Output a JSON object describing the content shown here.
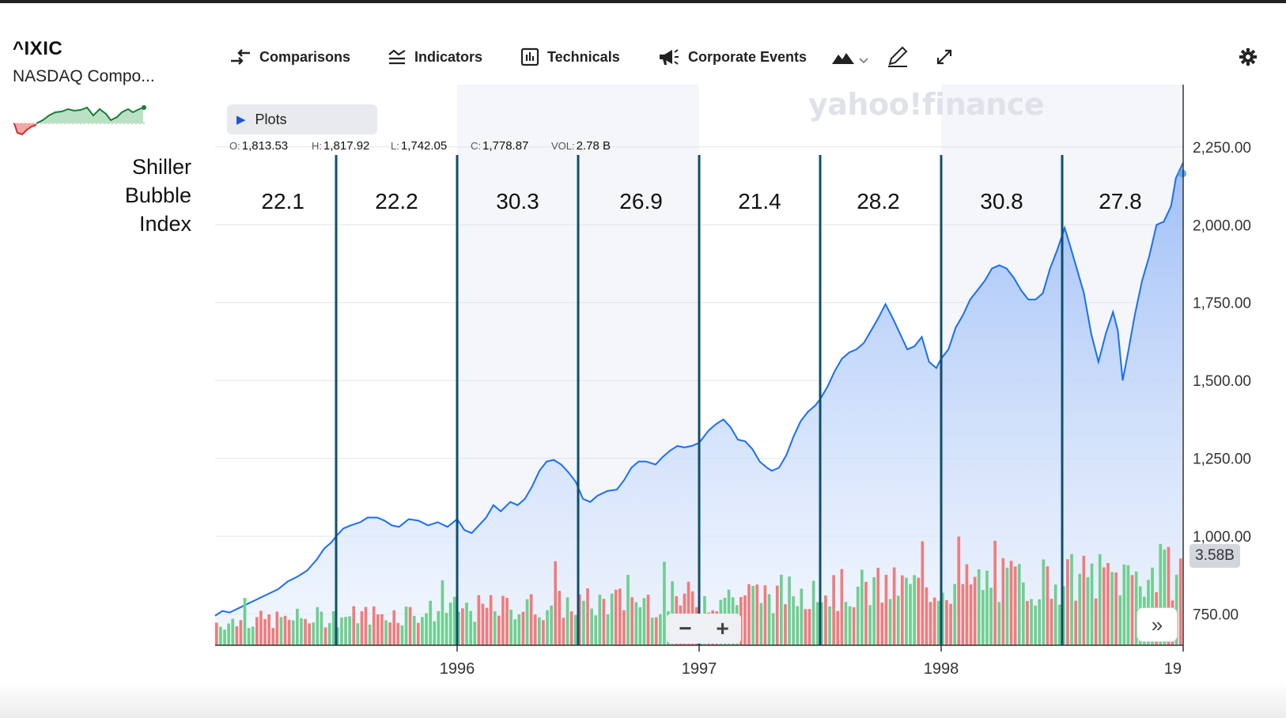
{
  "header": {
    "ticker": "^IXIC",
    "company": "NASDAQ Compo..."
  },
  "annotation": {
    "lines": [
      "Shiller",
      "Bubble",
      "Index"
    ]
  },
  "toolbar": {
    "comparisons": "Comparisons",
    "indicators": "Indicators",
    "technicals": "Technicals",
    "corporate_events": "Corporate Events",
    "icons": [
      "comparisons-icon",
      "indicators-icon",
      "technicals-icon",
      "megaphone-icon",
      "mountain-chart-icon",
      "chevron-down-icon",
      "pencil-icon",
      "expand-icon",
      "gear-icon"
    ]
  },
  "plots": {
    "label": "Plots"
  },
  "ohlc": {
    "o_label": "O:",
    "o": "1,813.53",
    "h_label": "H:",
    "h": "1,817.92",
    "l_label": "L:",
    "l": "1,742.05",
    "c_label": "C:",
    "c": "1,778.87",
    "vol_label": "VOL:",
    "vol": "2.78 B"
  },
  "watermark": "yahoo!finance",
  "volume_badge": "3.58B",
  "zoom": {
    "minus": "−",
    "plus": "+"
  },
  "forward": "»",
  "colors": {
    "line": "#1a6ff0",
    "area_top": "#9bbcf7",
    "area_bottom": "#eaf2fe",
    "vol_up": "#6fcf8f",
    "vol_down": "#f07c7c",
    "divider": "#0f4f6e",
    "shade": "#f4f6fa"
  },
  "chart_data": {
    "type": "area",
    "title": "",
    "xlabel": "",
    "ylabel": "",
    "y_ticks": [
      "750.00",
      "1,000.00",
      "1,250.00",
      "1,500.00",
      "1,750.00",
      "2,000.00",
      "2,250.00"
    ],
    "x_ticks": [
      {
        "label": "1996",
        "year": 1996.0
      },
      {
        "label": "1997",
        "year": 1997.0
      },
      {
        "label": "1998",
        "year": 1998.0
      },
      {
        "label": "19",
        "year": 1999.0
      }
    ],
    "xlim": [
      1995.0,
      1999.0
    ],
    "ylim": [
      650,
      2450
    ],
    "shaded_years": [
      [
        1996.0,
        1997.0
      ],
      [
        1998.0,
        1999.0
      ]
    ],
    "dividers": [
      1995.5,
      1996.0,
      1996.5,
      1997.0,
      1997.5,
      1998.0,
      1998.5
    ],
    "bubble_index": [
      {
        "label": "22.1",
        "center": 1995.28
      },
      {
        "label": "22.2",
        "center": 1995.75
      },
      {
        "label": "30.3",
        "center": 1996.25
      },
      {
        "label": "26.9",
        "center": 1996.76
      },
      {
        "label": "21.4",
        "center": 1997.25
      },
      {
        "label": "28.2",
        "center": 1997.74
      },
      {
        "label": "30.8",
        "center": 1998.25
      },
      {
        "label": "27.8",
        "center": 1998.74
      }
    ],
    "series": [
      {
        "points": [
          [
            1995.0,
            745
          ],
          [
            1995.03,
            760
          ],
          [
            1995.06,
            755
          ],
          [
            1995.1,
            770
          ],
          [
            1995.14,
            785
          ],
          [
            1995.18,
            800
          ],
          [
            1995.22,
            815
          ],
          [
            1995.26,
            830
          ],
          [
            1995.3,
            855
          ],
          [
            1995.34,
            870
          ],
          [
            1995.38,
            890
          ],
          [
            1995.42,
            925
          ],
          [
            1995.45,
            960
          ],
          [
            1995.48,
            980
          ],
          [
            1995.5,
            1000
          ],
          [
            1995.53,
            1025
          ],
          [
            1995.56,
            1035
          ],
          [
            1995.6,
            1045
          ],
          [
            1995.63,
            1060
          ],
          [
            1995.67,
            1060
          ],
          [
            1995.7,
            1050
          ],
          [
            1995.73,
            1035
          ],
          [
            1995.76,
            1030
          ],
          [
            1995.8,
            1055
          ],
          [
            1995.84,
            1050
          ],
          [
            1995.88,
            1035
          ],
          [
            1995.92,
            1045
          ],
          [
            1995.96,
            1030
          ],
          [
            1996.0,
            1055
          ],
          [
            1996.03,
            1020
          ],
          [
            1996.06,
            1010
          ],
          [
            1996.09,
            1035
          ],
          [
            1996.12,
            1060
          ],
          [
            1996.15,
            1100
          ],
          [
            1996.18,
            1080
          ],
          [
            1996.22,
            1110
          ],
          [
            1996.25,
            1100
          ],
          [
            1996.28,
            1120
          ],
          [
            1996.31,
            1160
          ],
          [
            1996.34,
            1210
          ],
          [
            1996.37,
            1240
          ],
          [
            1996.4,
            1245
          ],
          [
            1996.43,
            1230
          ],
          [
            1996.46,
            1205
          ],
          [
            1996.49,
            1175
          ],
          [
            1996.52,
            1120
          ],
          [
            1996.55,
            1110
          ],
          [
            1996.58,
            1130
          ],
          [
            1996.62,
            1145
          ],
          [
            1996.66,
            1150
          ],
          [
            1996.69,
            1180
          ],
          [
            1996.72,
            1220
          ],
          [
            1996.75,
            1240
          ],
          [
            1996.78,
            1240
          ],
          [
            1996.82,
            1230
          ],
          [
            1996.85,
            1255
          ],
          [
            1996.88,
            1275
          ],
          [
            1996.91,
            1290
          ],
          [
            1996.94,
            1285
          ],
          [
            1996.97,
            1290
          ],
          [
            1997.0,
            1300
          ],
          [
            1997.04,
            1340
          ],
          [
            1997.07,
            1360
          ],
          [
            1997.1,
            1375
          ],
          [
            1997.13,
            1350
          ],
          [
            1997.16,
            1310
          ],
          [
            1997.19,
            1305
          ],
          [
            1997.22,
            1280
          ],
          [
            1997.25,
            1240
          ],
          [
            1997.28,
            1220
          ],
          [
            1997.3,
            1210
          ],
          [
            1997.33,
            1220
          ],
          [
            1997.36,
            1260
          ],
          [
            1997.39,
            1320
          ],
          [
            1997.42,
            1370
          ],
          [
            1997.45,
            1400
          ],
          [
            1997.48,
            1420
          ],
          [
            1997.5,
            1440
          ],
          [
            1997.53,
            1480
          ],
          [
            1997.56,
            1530
          ],
          [
            1997.59,
            1570
          ],
          [
            1997.62,
            1590
          ],
          [
            1997.65,
            1600
          ],
          [
            1997.68,
            1620
          ],
          [
            1997.71,
            1660
          ],
          [
            1997.74,
            1700
          ],
          [
            1997.77,
            1745
          ],
          [
            1997.8,
            1700
          ],
          [
            1997.83,
            1650
          ],
          [
            1997.86,
            1600
          ],
          [
            1997.89,
            1610
          ],
          [
            1997.92,
            1640
          ],
          [
            1997.95,
            1560
          ],
          [
            1997.98,
            1540
          ],
          [
            1998.0,
            1570
          ],
          [
            1998.03,
            1600
          ],
          [
            1998.06,
            1670
          ],
          [
            1998.09,
            1710
          ],
          [
            1998.12,
            1760
          ],
          [
            1998.15,
            1790
          ],
          [
            1998.18,
            1820
          ],
          [
            1998.21,
            1860
          ],
          [
            1998.24,
            1870
          ],
          [
            1998.27,
            1860
          ],
          [
            1998.3,
            1830
          ],
          [
            1998.33,
            1790
          ],
          [
            1998.36,
            1760
          ],
          [
            1998.39,
            1760
          ],
          [
            1998.42,
            1780
          ],
          [
            1998.45,
            1860
          ],
          [
            1998.48,
            1920
          ],
          [
            1998.51,
            1990
          ],
          [
            1998.53,
            1940
          ],
          [
            1998.56,
            1860
          ],
          [
            1998.59,
            1780
          ],
          [
            1998.62,
            1650
          ],
          [
            1998.65,
            1560
          ],
          [
            1998.68,
            1650
          ],
          [
            1998.71,
            1720
          ],
          [
            1998.73,
            1660
          ],
          [
            1998.75,
            1500
          ],
          [
            1998.77,
            1580
          ],
          [
            1998.8,
            1710
          ],
          [
            1998.83,
            1820
          ],
          [
            1998.86,
            1900
          ],
          [
            1998.89,
            2000
          ],
          [
            1998.92,
            2010
          ],
          [
            1998.95,
            2060
          ],
          [
            1998.97,
            2150
          ],
          [
            1999.0,
            2200
          ]
        ]
      }
    ]
  }
}
